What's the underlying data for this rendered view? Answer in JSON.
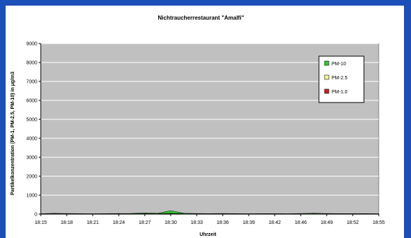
{
  "chart_data": {
    "type": "area",
    "title": "Nichtraucherrestaurant \"Amalfi\"",
    "xlabel": "Uhrzeit",
    "ylabel": "Partikelkonzentration (PM-1, PM-2.5, PM-10) in µg/m3",
    "ylim": [
      0,
      9000
    ],
    "yticks": [
      "0",
      "1000",
      "2000",
      "3000",
      "4000",
      "5000",
      "6000",
      "7000",
      "8000",
      "9000"
    ],
    "xticks": [
      "18:15",
      "18:18",
      "18:21",
      "18:24",
      "18:27",
      "18:30",
      "18:33",
      "18:36",
      "18:39",
      "18:42",
      "18:46",
      "18:49",
      "18:52",
      "18:55"
    ],
    "grid": true,
    "legend_position": "top-right",
    "colors": {
      "plot_bg": "#c0c0c0",
      "gridline": "#ffffff",
      "pm10": "#33cc33",
      "pm25": "#ffff99",
      "pm10_fill": "#33cc33",
      "pm1": "#cc2222"
    },
    "series": [
      {
        "name": "PM-10",
        "x": [
          0,
          0.5,
          1,
          1.5,
          2,
          2.5,
          3,
          3.5,
          4,
          4.5,
          5,
          5.5,
          6,
          6.5,
          7,
          7.5,
          8,
          8.5,
          9,
          9.5,
          10,
          10.5,
          11,
          11.5,
          12,
          12.5,
          13
        ],
        "values": [
          20,
          40,
          30,
          25,
          20,
          25,
          30,
          35,
          60,
          40,
          180,
          45,
          30,
          25,
          30,
          25,
          20,
          25,
          25,
          20,
          30,
          45,
          30,
          25,
          25,
          25,
          20
        ]
      },
      {
        "name": "PM-2.5",
        "x": [
          0,
          0.5,
          1,
          1.5,
          2,
          2.5,
          3,
          3.5,
          4,
          4.5,
          5,
          5.5,
          6,
          6.5,
          7,
          7.5,
          8,
          8.5,
          9,
          9.5,
          10,
          10.5,
          11,
          11.5,
          12,
          12.5,
          13
        ],
        "values": [
          10,
          15,
          12,
          10,
          10,
          12,
          14,
          15,
          20,
          15,
          40,
          15,
          12,
          10,
          12,
          10,
          10,
          10,
          10,
          10,
          12,
          15,
          12,
          10,
          10,
          10,
          10
        ]
      },
      {
        "name": "PM-1.0",
        "x": [
          0,
          0.5,
          1,
          1.5,
          2,
          2.5,
          3,
          3.5,
          4,
          4.5,
          5,
          5.5,
          6,
          6.5,
          7,
          7.5,
          8,
          8.5,
          9,
          9.5,
          10,
          10.5,
          11,
          11.5,
          12,
          12.5,
          13
        ],
        "values": [
          5,
          8,
          6,
          5,
          5,
          6,
          7,
          8,
          10,
          8,
          20,
          8,
          6,
          5,
          6,
          5,
          5,
          5,
          5,
          5,
          6,
          8,
          6,
          5,
          5,
          5,
          5
        ]
      }
    ]
  }
}
